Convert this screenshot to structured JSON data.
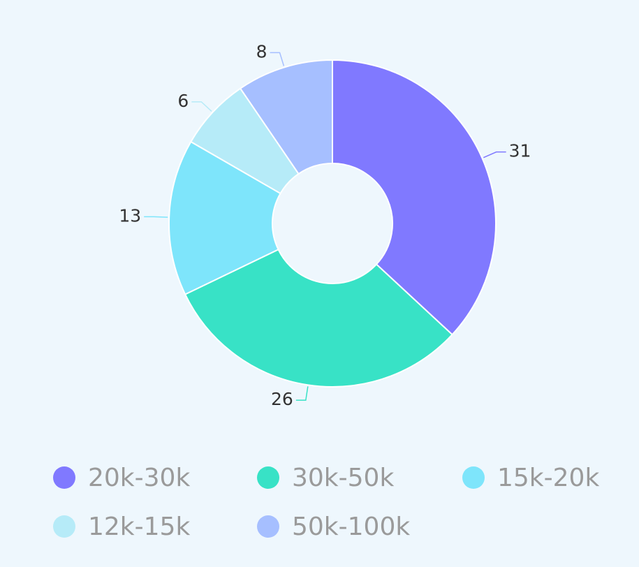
{
  "chart_data": {
    "type": "pie",
    "variant": "donut",
    "categories": [
      "20k-30k",
      "30k-50k",
      "15k-20k",
      "12k-15k",
      "50k-100k"
    ],
    "values": [
      31,
      26,
      13,
      6,
      8
    ],
    "colors": [
      "#8079ff",
      "#38e2c6",
      "#7ee5fb",
      "#b6ebf8",
      "#a6bfff"
    ],
    "legend": {
      "position": "bottom"
    }
  }
}
